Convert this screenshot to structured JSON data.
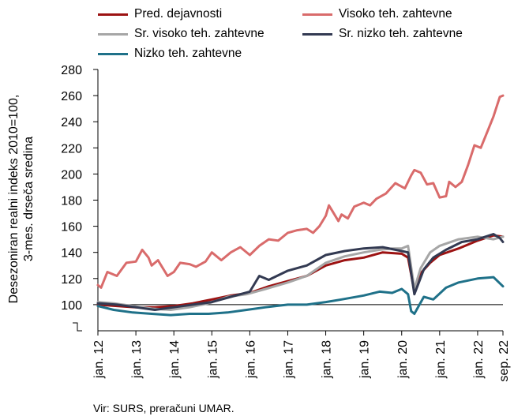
{
  "chart_data": {
    "type": "line",
    "title": "",
    "xlabel": "",
    "ylabel": "Desezoniran realni indeks 2010=100, 3-mes. drseča sredina",
    "ylabel_lines": [
      "Desezoniran realni indeks 2010=100,",
      "3-mes. drseča sredina"
    ],
    "ylim": [
      80,
      280
    ],
    "yticks": [
      100,
      120,
      140,
      160,
      180,
      200,
      220,
      240,
      260,
      280
    ],
    "x_tick_labels": [
      "jan. 12",
      "jan. 13",
      "jan. 14",
      "jan. 15",
      "jan. 16",
      "jan. 17",
      "jan. 18",
      "jan. 19",
      "jan. 20",
      "jan. 21",
      "jan. 22",
      "sep. 22"
    ],
    "x_range": [
      "2012-01",
      "2022-09"
    ],
    "reference_line": 100,
    "legend_position": "top",
    "series": [
      {
        "name": "Pred. dejavnosti",
        "color": "#9c1212",
        "points": [
          [
            "2012-01",
            100
          ],
          [
            "2012-07",
            99
          ],
          [
            "2013-01",
            98
          ],
          [
            "2013-07",
            98
          ],
          [
            "2014-01",
            99
          ],
          [
            "2014-07",
            101
          ],
          [
            "2015-01",
            104
          ],
          [
            "2015-07",
            107
          ],
          [
            "2016-01",
            109
          ],
          [
            "2016-07",
            114
          ],
          [
            "2017-01",
            118
          ],
          [
            "2017-07",
            122
          ],
          [
            "2018-01",
            130
          ],
          [
            "2018-07",
            134
          ],
          [
            "2019-01",
            136
          ],
          [
            "2019-07",
            140
          ],
          [
            "2020-01",
            139
          ],
          [
            "2020-03",
            136
          ],
          [
            "2020-05",
            110
          ],
          [
            "2020-07",
            124
          ],
          [
            "2020-10",
            132
          ],
          [
            "2021-01",
            138
          ],
          [
            "2021-07",
            143
          ],
          [
            "2022-01",
            149
          ],
          [
            "2022-06",
            153
          ],
          [
            "2022-09",
            152
          ]
        ]
      },
      {
        "name": "Visoko teh. zahtevne",
        "color": "#d96b6b",
        "points": [
          [
            "2012-01",
            115
          ],
          [
            "2012-02",
            113
          ],
          [
            "2012-04",
            125
          ],
          [
            "2012-07",
            122
          ],
          [
            "2012-10",
            132
          ],
          [
            "2013-01",
            133
          ],
          [
            "2013-03",
            142
          ],
          [
            "2013-05",
            136
          ],
          [
            "2013-06",
            130
          ],
          [
            "2013-08",
            134
          ],
          [
            "2013-11",
            122
          ],
          [
            "2014-01",
            125
          ],
          [
            "2014-03",
            132
          ],
          [
            "2014-06",
            131
          ],
          [
            "2014-08",
            129
          ],
          [
            "2014-11",
            133
          ],
          [
            "2015-01",
            140
          ],
          [
            "2015-04",
            134
          ],
          [
            "2015-07",
            140
          ],
          [
            "2015-10",
            144
          ],
          [
            "2016-01",
            138
          ],
          [
            "2016-04",
            145
          ],
          [
            "2016-07",
            150
          ],
          [
            "2016-10",
            149
          ],
          [
            "2017-01",
            155
          ],
          [
            "2017-04",
            157
          ],
          [
            "2017-07",
            158
          ],
          [
            "2017-09",
            155
          ],
          [
            "2017-11",
            160
          ],
          [
            "2018-01",
            168
          ],
          [
            "2018-02",
            176
          ],
          [
            "2018-03",
            172
          ],
          [
            "2018-05",
            164
          ],
          [
            "2018-06",
            169
          ],
          [
            "2018-08",
            166
          ],
          [
            "2018-10",
            175
          ],
          [
            "2019-01",
            178
          ],
          [
            "2019-03",
            176
          ],
          [
            "2019-05",
            181
          ],
          [
            "2019-08",
            185
          ],
          [
            "2019-11",
            193
          ],
          [
            "2020-02",
            189
          ],
          [
            "2020-04",
            199
          ],
          [
            "2020-05",
            203
          ],
          [
            "2020-07",
            201
          ],
          [
            "2020-09",
            192
          ],
          [
            "2020-11",
            193
          ],
          [
            "2021-01",
            182
          ],
          [
            "2021-03",
            183
          ],
          [
            "2021-04",
            194
          ],
          [
            "2021-06",
            190
          ],
          [
            "2021-08",
            194
          ],
          [
            "2021-10",
            207
          ],
          [
            "2021-12",
            222
          ],
          [
            "2022-02",
            220
          ],
          [
            "2022-04",
            232
          ],
          [
            "2022-06",
            244
          ],
          [
            "2022-08",
            259
          ],
          [
            "2022-09",
            260
          ]
        ]
      },
      {
        "name": "Sr. visoko teh. zahtevne",
        "color": "#a6a6a6",
        "points": [
          [
            "2012-01",
            102
          ],
          [
            "2012-06",
            101
          ],
          [
            "2012-12",
            99
          ],
          [
            "2013-06",
            97
          ],
          [
            "2013-12",
            96
          ],
          [
            "2014-06",
            98
          ],
          [
            "2014-12",
            101
          ],
          [
            "2015-06",
            106
          ],
          [
            "2015-12",
            108
          ],
          [
            "2016-06",
            112
          ],
          [
            "2017-01",
            117
          ],
          [
            "2017-07",
            122
          ],
          [
            "2018-01",
            132
          ],
          [
            "2018-07",
            137
          ],
          [
            "2019-01",
            140
          ],
          [
            "2019-06",
            142
          ],
          [
            "2019-10",
            143
          ],
          [
            "2020-01",
            143
          ],
          [
            "2020-03",
            145
          ],
          [
            "2020-05",
            112
          ],
          [
            "2020-07",
            128
          ],
          [
            "2020-10",
            140
          ],
          [
            "2021-01",
            145
          ],
          [
            "2021-07",
            150
          ],
          [
            "2022-01",
            152
          ],
          [
            "2022-06",
            150
          ],
          [
            "2022-09",
            152
          ]
        ]
      },
      {
        "name": "Sr. nizko teh. zahtevne",
        "color": "#333a52",
        "points": [
          [
            "2012-01",
            101
          ],
          [
            "2012-07",
            100
          ],
          [
            "2013-01",
            98
          ],
          [
            "2013-07",
            96
          ],
          [
            "2014-01",
            98
          ],
          [
            "2014-07",
            100
          ],
          [
            "2015-01",
            102
          ],
          [
            "2015-07",
            106
          ],
          [
            "2016-01",
            110
          ],
          [
            "2016-04",
            122
          ],
          [
            "2016-07",
            119
          ],
          [
            "2017-01",
            126
          ],
          [
            "2017-07",
            130
          ],
          [
            "2018-01",
            138
          ],
          [
            "2018-07",
            141
          ],
          [
            "2019-01",
            143
          ],
          [
            "2019-07",
            144
          ],
          [
            "2020-01",
            141
          ],
          [
            "2020-03",
            140
          ],
          [
            "2020-05",
            108
          ],
          [
            "2020-08",
            127
          ],
          [
            "2020-11",
            136
          ],
          [
            "2021-03",
            142
          ],
          [
            "2021-08",
            148
          ],
          [
            "2022-01",
            150
          ],
          [
            "2022-06",
            154
          ],
          [
            "2022-08",
            151
          ],
          [
            "2022-09",
            148
          ]
        ]
      },
      {
        "name": "Nizko teh. zahtevne",
        "color": "#1f7189",
        "points": [
          [
            "2012-01",
            99
          ],
          [
            "2012-06",
            96
          ],
          [
            "2012-12",
            94
          ],
          [
            "2013-06",
            93
          ],
          [
            "2013-12",
            92
          ],
          [
            "2014-06",
            93
          ],
          [
            "2014-12",
            93
          ],
          [
            "2015-06",
            94
          ],
          [
            "2015-12",
            96
          ],
          [
            "2016-06",
            98
          ],
          [
            "2017-01",
            100
          ],
          [
            "2017-07",
            100
          ],
          [
            "2018-01",
            102
          ],
          [
            "2018-06",
            104
          ],
          [
            "2019-01",
            107
          ],
          [
            "2019-06",
            110
          ],
          [
            "2019-10",
            109
          ],
          [
            "2020-01",
            112
          ],
          [
            "2020-03",
            108
          ],
          [
            "2020-04",
            95
          ],
          [
            "2020-05",
            93
          ],
          [
            "2020-08",
            106
          ],
          [
            "2020-11",
            104
          ],
          [
            "2021-03",
            113
          ],
          [
            "2021-07",
            117
          ],
          [
            "2022-01",
            120
          ],
          [
            "2022-06",
            121
          ],
          [
            "2022-09",
            114
          ]
        ]
      }
    ]
  },
  "source": "Vir: SURS, preračuni UMAR."
}
